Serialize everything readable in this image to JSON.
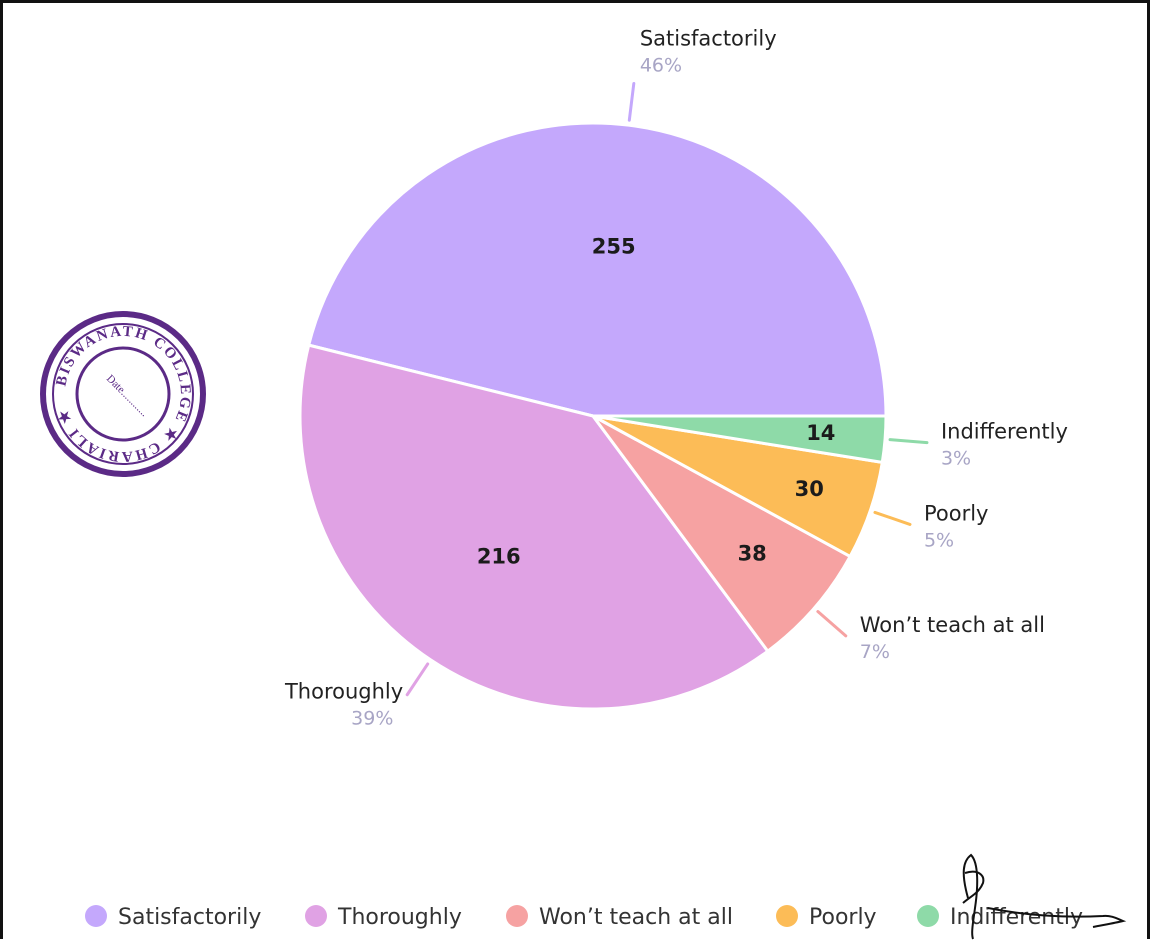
{
  "colors": {
    "Satisfactorily": "#c4a8fc",
    "Thoroughly": "#e0a2e4",
    "Won't teach at all": "#f6a2a2",
    "Poorly": "#fcbc57",
    "Indifferently": "#8edaa8"
  },
  "stamp": {
    "text": "BISWANATH COLLEGE ★ CHARIALI ★",
    "date_label": "Date............"
  },
  "chart_data": {
    "type": "pie",
    "categories": [
      "Satisfactorily",
      "Thoroughly",
      "Won't teach at all",
      "Poorly",
      "Indifferently"
    ],
    "values": [
      255,
      216,
      38,
      30,
      14
    ],
    "value_labels": [
      "255",
      "216",
      "38",
      "30",
      "14"
    ],
    "category_labels": [
      "Satisfactorily",
      "Thoroughly",
      "Won’t teach at all",
      "Poorly",
      "Indifferently"
    ],
    "percent_labels": [
      "46%",
      "39%",
      "7%",
      "5%",
      "3%"
    ],
    "legend": {
      "position": "bottom",
      "labels": [
        "Satisfactorily",
        "Thoroughly",
        "Won’t teach at all",
        "Poorly",
        "Indifferently"
      ]
    }
  }
}
